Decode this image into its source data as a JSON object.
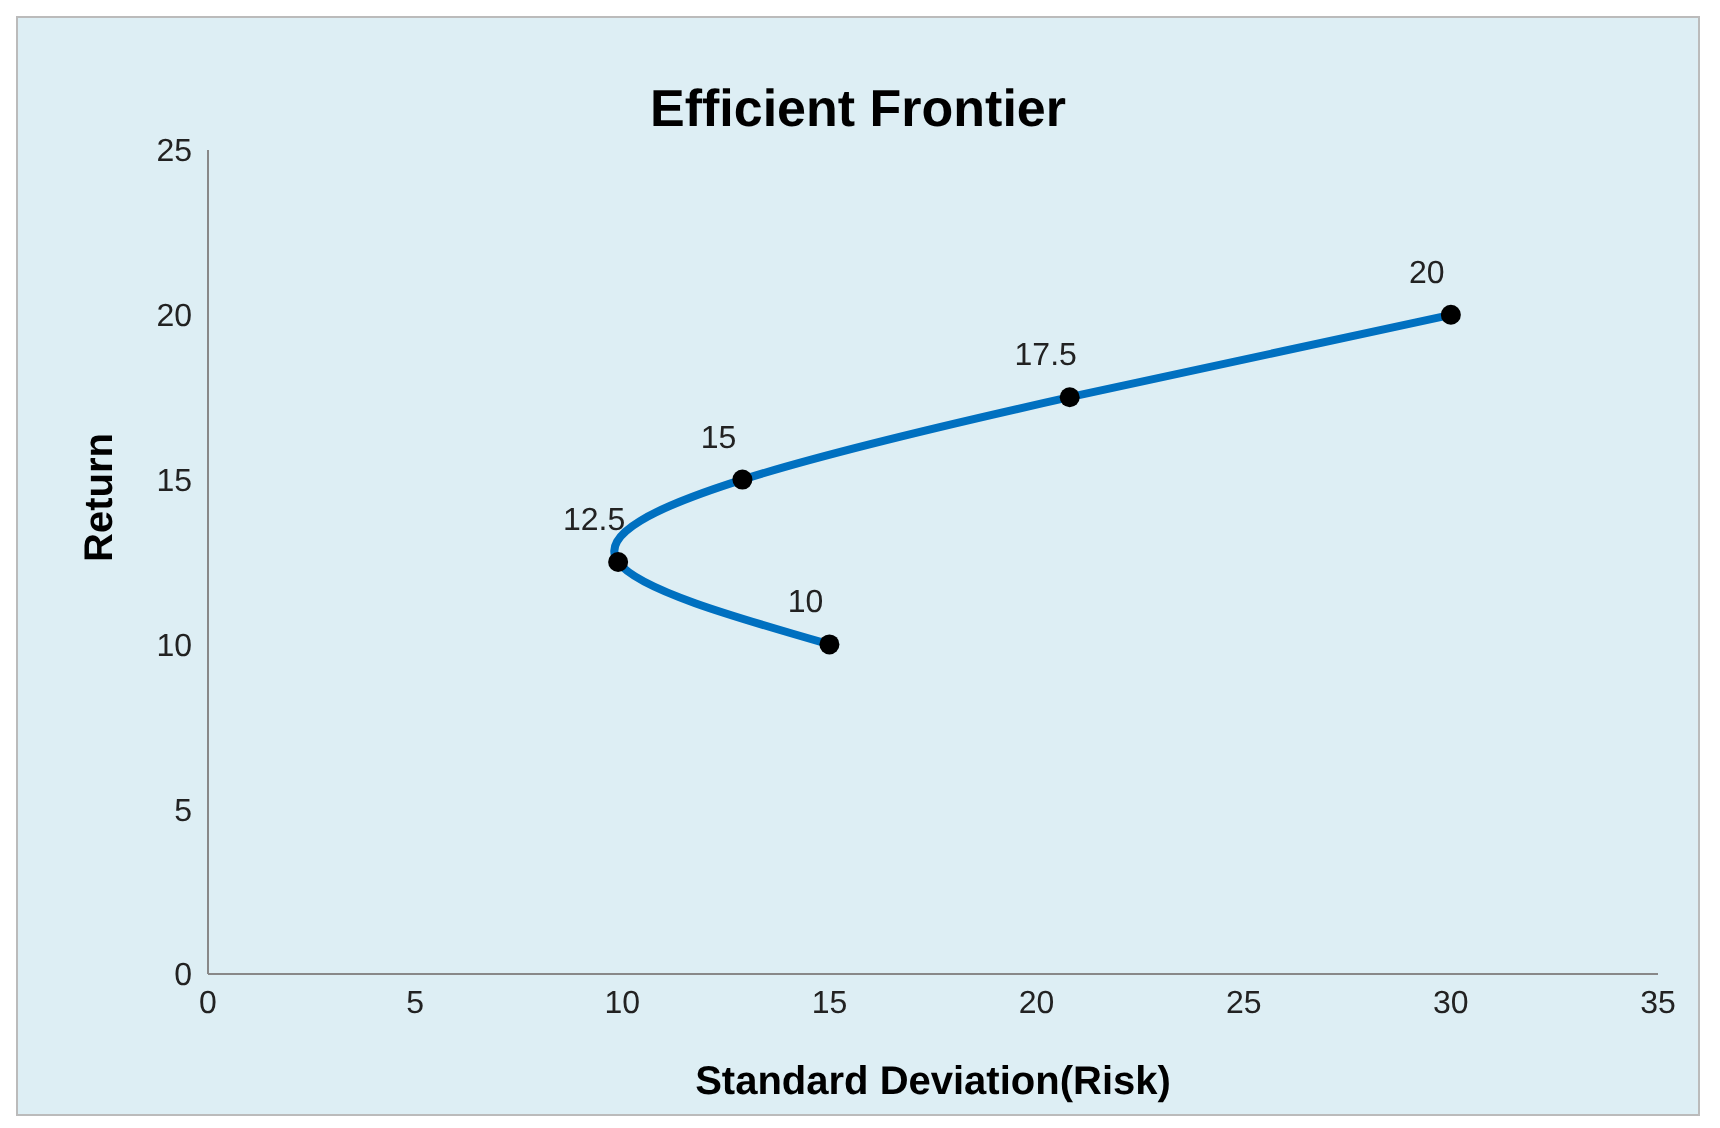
{
  "chart_data": {
    "type": "line",
    "title": "Efficient Frontier",
    "xlabel": "Standard Deviation(Risk)",
    "ylabel": "Return",
    "x": [
      15,
      9.9,
      12.9,
      20.8,
      30
    ],
    "series": [
      {
        "color": "#0070c0",
        "values": [
          10,
          12.5,
          15,
          17.5,
          20
        ]
      }
    ],
    "xlim": [
      0,
      35
    ],
    "xticks": [
      0,
      5,
      10,
      15,
      20,
      25,
      30,
      35
    ],
    "ylim": [
      0,
      25
    ],
    "yticks": [
      0,
      5,
      10,
      15,
      20,
      25
    ],
    "grid": false,
    "legend": false,
    "marker": "circle",
    "line_style": "solid",
    "data_labels": true
  }
}
